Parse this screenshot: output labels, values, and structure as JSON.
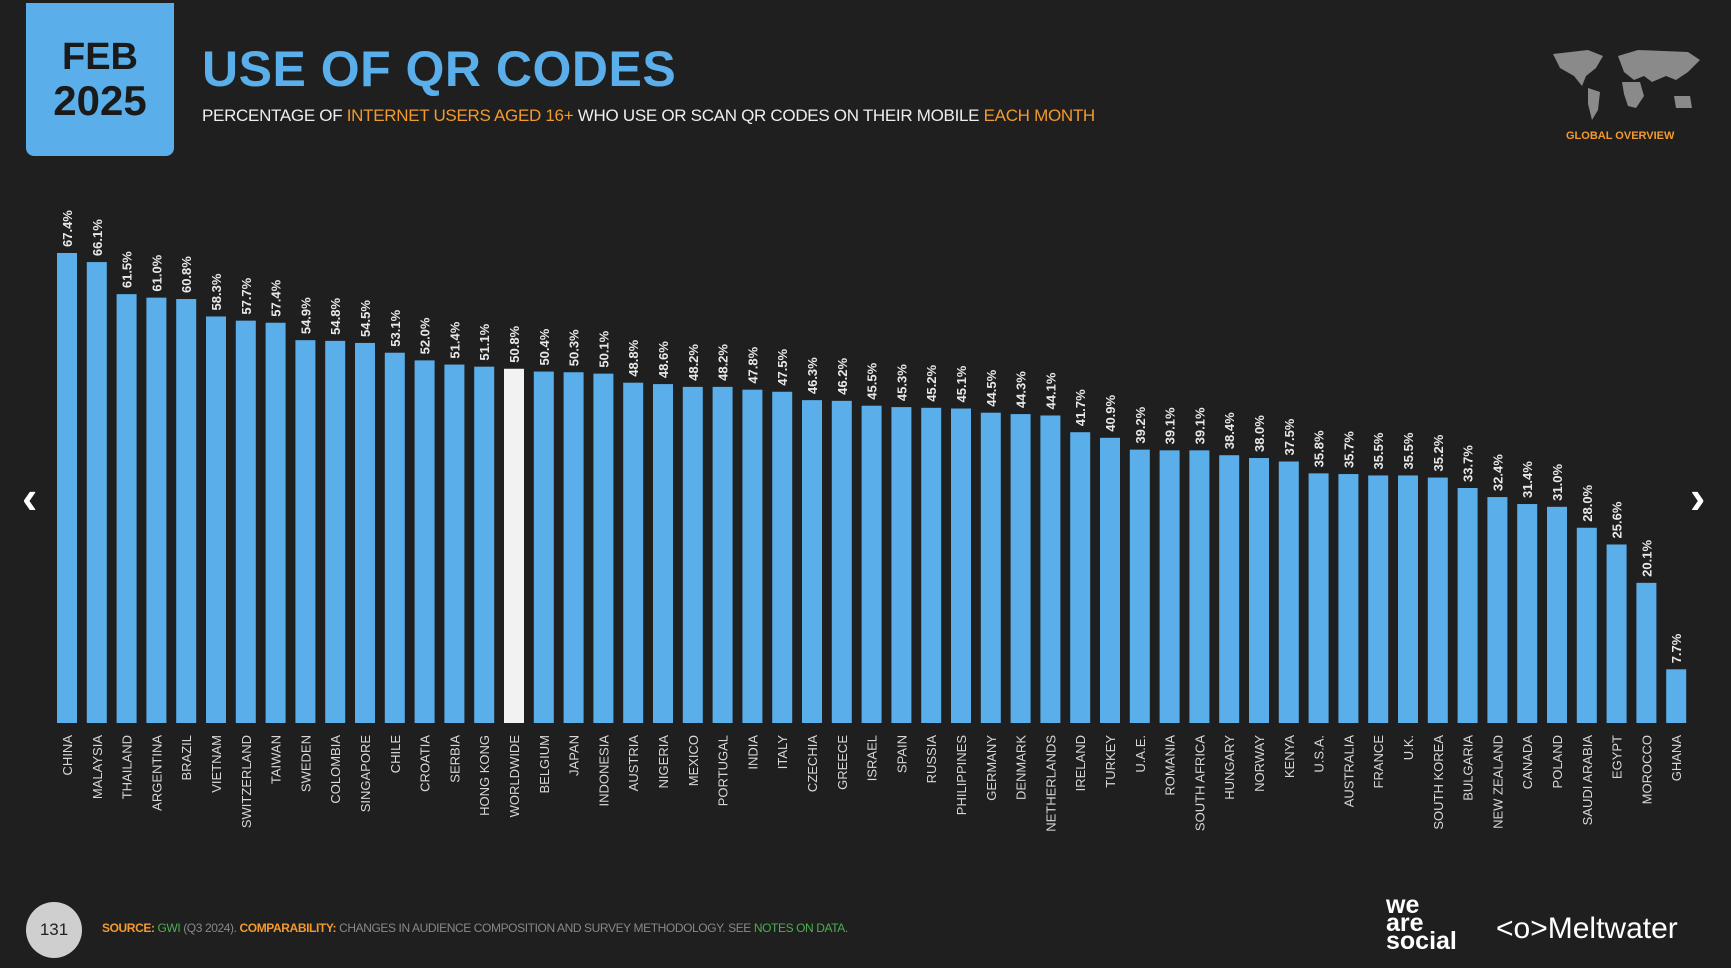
{
  "header": {
    "month": "FEB",
    "year": "2025",
    "title": "USE OF QR CODES",
    "subtitle_parts": [
      "PERCENTAGE OF ",
      "INTERNET USERS AGED 16+",
      " WHO USE OR SCAN QR CODES ON THEIR MOBILE ",
      "EACH MONTH"
    ],
    "badge": "GLOBAL OVERVIEW"
  },
  "footer": {
    "page": "131",
    "source_label": "SOURCE:",
    "source": "GWI",
    "source_detail": " (Q3 2024). ",
    "comp_label": "COMPARABILITY:",
    "comp_text": " CHANGES IN AUDIENCE COMPOSITION AND SURVEY METHODOLOGY. SEE ",
    "notes_link": "NOTES ON DATA",
    "notes_end": ".",
    "brand1": "we are social",
    "brand2": "Meltwater"
  },
  "nav": {
    "prev": "‹",
    "next": "›"
  },
  "colors": {
    "bar": "#5aaeea",
    "highlight": "#f2f2f2",
    "accent": "#f29a2e"
  },
  "chart_data": {
    "type": "bar",
    "title": "USE OF QR CODES",
    "ylabel": "Percentage of internet users aged 16+",
    "ylim": [
      0,
      70
    ],
    "grid": false,
    "highlight": "WORLDWIDE",
    "categories": [
      "CHINA",
      "MALAYSIA",
      "THAILAND",
      "ARGENTINA",
      "BRAZIL",
      "VIETNAM",
      "SWITZERLAND",
      "TAIWAN",
      "SWEDEN",
      "COLOMBIA",
      "SINGAPORE",
      "CHILE",
      "CROATIA",
      "SERBIA",
      "HONG KONG",
      "WORLDWIDE",
      "BELGIUM",
      "JAPAN",
      "INDONESIA",
      "AUSTRIA",
      "NIGERIA",
      "MEXICO",
      "PORTUGAL",
      "INDIA",
      "ITALY",
      "CZECHIA",
      "GREECE",
      "ISRAEL",
      "SPAIN",
      "RUSSIA",
      "PHILIPPINES",
      "GERMANY",
      "DENMARK",
      "NETHERLANDS",
      "IRELAND",
      "TURKEY",
      "U.A.E.",
      "ROMANIA",
      "SOUTH AFRICA",
      "HUNGARY",
      "NORWAY",
      "KENYA",
      "U.S.A.",
      "AUSTRALIA",
      "FRANCE",
      "U.K.",
      "SOUTH KOREA",
      "BULGARIA",
      "NEW ZEALAND",
      "CANADA",
      "POLAND",
      "SAUDI ARABIA",
      "EGYPT",
      "MOROCCO",
      "GHANA"
    ],
    "values": [
      67.4,
      66.1,
      61.5,
      61.0,
      60.8,
      58.3,
      57.7,
      57.4,
      54.9,
      54.8,
      54.5,
      53.1,
      52.0,
      51.4,
      51.1,
      50.8,
      50.4,
      50.3,
      50.1,
      48.8,
      48.6,
      48.2,
      48.2,
      47.8,
      47.5,
      46.3,
      46.2,
      45.5,
      45.3,
      45.2,
      45.1,
      44.5,
      44.3,
      44.1,
      41.7,
      40.9,
      39.2,
      39.1,
      39.1,
      38.4,
      38.0,
      37.5,
      35.8,
      35.7,
      35.5,
      35.5,
      35.2,
      33.7,
      32.4,
      31.4,
      31.0,
      28.0,
      25.6,
      20.1,
      7.7
    ]
  }
}
